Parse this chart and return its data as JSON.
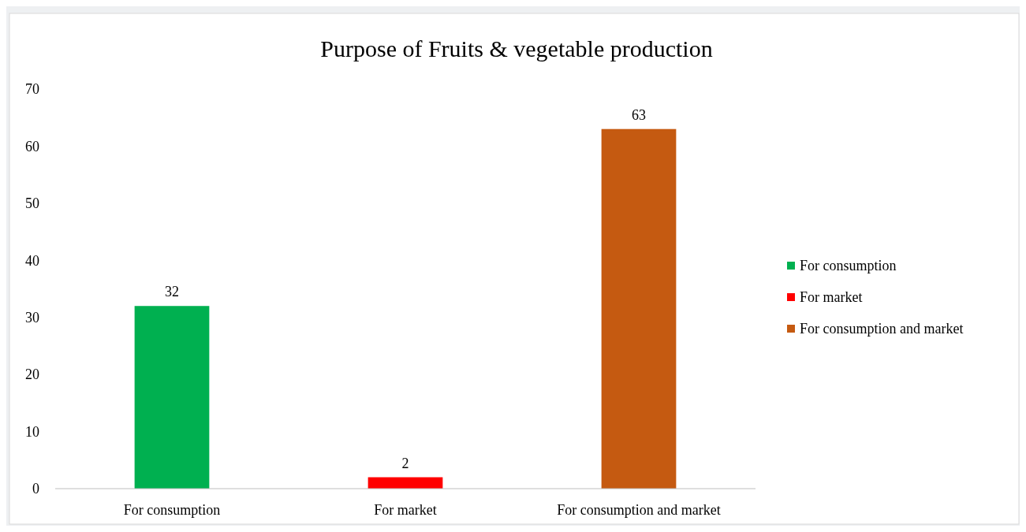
{
  "chart_data": {
    "type": "bar",
    "title": "Purpose of Fruits & vegetable production",
    "categories": [
      "For consumption",
      "For market",
      "For consumption and market"
    ],
    "series": [
      {
        "name": "For consumption",
        "color": "#00b050",
        "values": [
          32,
          null,
          null
        ]
      },
      {
        "name": "For market",
        "color": "#ff0000",
        "values": [
          null,
          2,
          null
        ]
      },
      {
        "name": "For consumption and market",
        "color": "#c55a11",
        "values": [
          null,
          null,
          63
        ]
      }
    ],
    "ylim": [
      0,
      70
    ],
    "yticks": [
      0,
      10,
      20,
      30,
      40,
      50,
      60,
      70
    ],
    "data_labels": true,
    "legend": "right",
    "grid": false
  }
}
